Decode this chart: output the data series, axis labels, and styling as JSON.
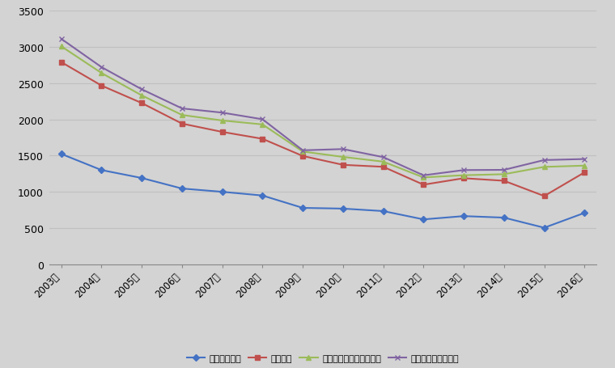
{
  "years": [
    "2003年",
    "2004年",
    "2005年",
    "2006年",
    "2007年",
    "2008年",
    "2009年",
    "2010年",
    "2011年",
    "2012年",
    "2013年",
    "2014年",
    "2015年",
    "2016年"
  ],
  "accident_deaths": [
    1524,
    1302,
    1193,
    1048,
    1003,
    952,
    782,
    772,
    738,
    624,
    669,
    648,
    509,
    713
  ],
  "accident_count": [
    2787,
    2464,
    2224,
    1941,
    1827,
    1732,
    1496,
    1374,
    1347,
    1101,
    1190,
    1155,
    945,
    1270
  ],
  "major_deaths": [
    3004,
    2637,
    2329,
    2060,
    1984,
    1930,
    1557,
    1483,
    1418,
    1201,
    1231,
    1245,
    1346,
    1363
  ],
  "major_count": [
    3107,
    2718,
    2413,
    2150,
    2092,
    2001,
    1574,
    1591,
    1480,
    1230,
    1302,
    1305,
    1440,
    1454
  ],
  "line_colors": {
    "accident_deaths": "#4472C4",
    "accident_count": "#C0504D",
    "major_deaths": "#9BBB59",
    "major_count": "#8064A2"
  },
  "legend_labels": [
    "事故死亡人数",
    "事故起数",
    "较大及以上事故死亡人数",
    "较大及以上事故起数"
  ],
  "ylim": [
    0,
    3500
  ],
  "yticks": [
    0,
    500,
    1000,
    1500,
    2000,
    2500,
    3000,
    3500
  ],
  "background_color": "#D3D3D3",
  "grid_color": "#C0C0C0",
  "marker_size": 4,
  "line_width": 1.5
}
